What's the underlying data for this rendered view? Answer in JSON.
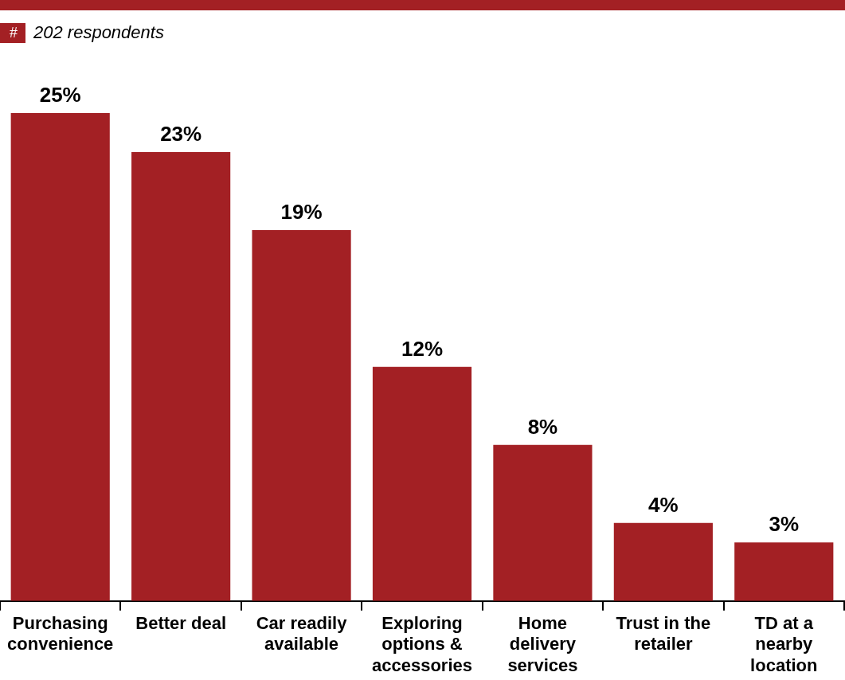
{
  "chart_data": {
    "type": "bar",
    "subtitle": "202 respondents",
    "annotations": [
      "#"
    ],
    "categories": [
      "Purchasing convenience",
      "Better deal",
      "Car readily available",
      "Exploring options & accessories",
      "Home delivery services",
      "Trust in the retailer",
      "TD at a nearby location"
    ],
    "values": [
      25,
      23,
      19,
      12,
      8,
      4,
      3
    ],
    "color": "#a32024",
    "data_labels": true,
    "value_labels": [
      "25%",
      "23%",
      "19%",
      "12%",
      "8%",
      "4%",
      "3%"
    ]
  }
}
